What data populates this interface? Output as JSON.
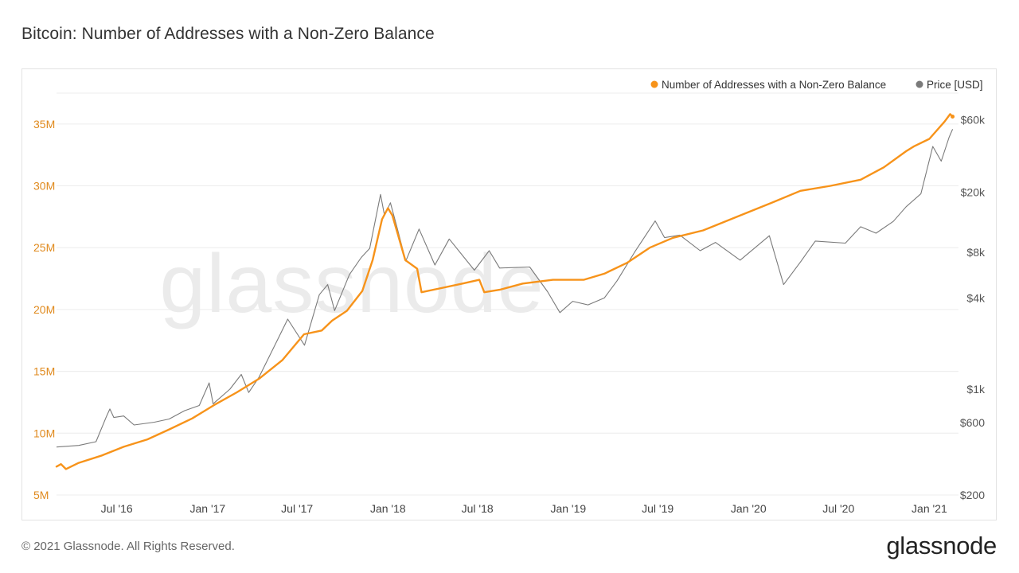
{
  "header": {
    "title": "Bitcoin: Number of Addresses with a Non-Zero Balance"
  },
  "footer": {
    "copyright": "© 2021 Glassnode. All Rights Reserved.",
    "brand": "glassnode"
  },
  "watermark": "glassnode",
  "colors": {
    "addresses": "#f7931a",
    "price": "#7a7a7a",
    "grid": "#ececec",
    "left_axis_text": "#e08a1e",
    "right_axis_text": "#555555"
  },
  "chart_data": {
    "type": "line",
    "title": "Bitcoin: Number of Addresses with a Non-Zero Balance",
    "legend": [
      "Number of Addresses with a Non-Zero Balance",
      "Price [USD]"
    ],
    "legend_position": "top-right",
    "grid": true,
    "x_range": [
      "2016-03-01",
      "2021-03-01"
    ],
    "x_ticks": [
      {
        "label": "Jul '16",
        "date": "2016-07-01"
      },
      {
        "label": "Jan '17",
        "date": "2017-01-01"
      },
      {
        "label": "Jul '17",
        "date": "2017-07-01"
      },
      {
        "label": "Jan '18",
        "date": "2018-01-01"
      },
      {
        "label": "Jul '18",
        "date": "2018-07-01"
      },
      {
        "label": "Jan '19",
        "date": "2019-01-01"
      },
      {
        "label": "Jul '19",
        "date": "2019-07-01"
      },
      {
        "label": "Jan '20",
        "date": "2020-01-01"
      },
      {
        "label": "Jul '20",
        "date": "2020-07-01"
      },
      {
        "label": "Jan '21",
        "date": "2021-01-01"
      }
    ],
    "y_left": {
      "range": [
        5000000,
        37500000
      ],
      "ticks": [
        {
          "label": "5M",
          "value": 5000000
        },
        {
          "label": "10M",
          "value": 10000000
        },
        {
          "label": "15M",
          "value": 15000000
        },
        {
          "label": "20M",
          "value": 20000000
        },
        {
          "label": "25M",
          "value": 25000000
        },
        {
          "label": "30M",
          "value": 30000000
        },
        {
          "label": "35M",
          "value": 35000000
        }
      ]
    },
    "y_right": {
      "scale": "log",
      "range": [
        200,
        90000
      ],
      "ticks": [
        {
          "label": "$200",
          "value": 200
        },
        {
          "label": "$600",
          "value": 600
        },
        {
          "label": "$1k",
          "value": 1000
        },
        {
          "label": "$4k",
          "value": 4000
        },
        {
          "label": "$8k",
          "value": 8000
        },
        {
          "label": "$20k",
          "value": 20000
        },
        {
          "label": "$60k",
          "value": 60000
        }
      ]
    },
    "series": [
      {
        "name": "Number of Addresses with a Non-Zero Balance",
        "axis": "left",
        "points": [
          [
            "2016-03-01",
            7300000.0
          ],
          [
            "2016-03-10",
            7500000.0
          ],
          [
            "2016-03-20",
            7100000.0
          ],
          [
            "2016-04-15",
            7600000.0
          ],
          [
            "2016-06-01",
            8200000.0
          ],
          [
            "2016-07-15",
            8900000.0
          ],
          [
            "2016-09-01",
            9500000.0
          ],
          [
            "2016-10-15",
            10300000.0
          ],
          [
            "2016-12-01",
            11200000.0
          ],
          [
            "2017-01-15",
            12300000.0
          ],
          [
            "2017-03-01",
            13300000.0
          ],
          [
            "2017-04-15",
            14400000.0
          ],
          [
            "2017-06-01",
            15900000.0
          ],
          [
            "2017-06-20",
            16800000.0
          ],
          [
            "2017-07-15",
            18000000.0
          ],
          [
            "2017-08-20",
            18300000.0
          ],
          [
            "2017-09-10",
            19100000.0
          ],
          [
            "2017-10-10",
            19900000.0
          ],
          [
            "2017-11-10",
            21500000.0
          ],
          [
            "2017-12-01",
            24000000.0
          ],
          [
            "2017-12-20",
            27300000.0
          ],
          [
            "2018-01-01",
            28200000.0
          ],
          [
            "2018-01-10",
            27600000.0
          ],
          [
            "2018-02-05",
            24000000.0
          ],
          [
            "2018-03-01",
            23300000.0
          ],
          [
            "2018-03-10",
            21400000.0
          ],
          [
            "2018-04-15",
            21700000.0
          ],
          [
            "2018-06-01",
            22100000.0
          ],
          [
            "2018-07-05",
            22400000.0
          ],
          [
            "2018-07-15",
            21400000.0
          ],
          [
            "2018-08-15",
            21600000.0
          ],
          [
            "2018-10-01",
            22100000.0
          ],
          [
            "2018-12-01",
            22400000.0
          ],
          [
            "2019-02-01",
            22400000.0
          ],
          [
            "2019-03-15",
            22900000.0
          ],
          [
            "2019-05-01",
            23800000.0
          ],
          [
            "2019-06-15",
            25000000.0
          ],
          [
            "2019-08-01",
            25800000.0
          ],
          [
            "2019-10-01",
            26400000.0
          ],
          [
            "2019-12-15",
            27600000.0
          ],
          [
            "2020-02-15",
            28600000.0
          ],
          [
            "2020-04-15",
            29600000.0
          ],
          [
            "2020-06-15",
            30000000.0
          ],
          [
            "2020-08-15",
            30500000.0
          ],
          [
            "2020-10-01",
            31500000.0
          ],
          [
            "2020-11-15",
            32800000.0
          ],
          [
            "2020-12-01",
            33200000.0
          ],
          [
            "2021-01-01",
            33800000.0
          ],
          [
            "2021-02-01",
            35200000.0
          ],
          [
            "2021-02-12",
            35800000.0
          ],
          [
            "2021-02-17",
            35600000.0
          ]
        ]
      },
      {
        "name": "Price [USD]",
        "axis": "right",
        "points": [
          [
            "2016-03-01",
            415
          ],
          [
            "2016-04-15",
            425
          ],
          [
            "2016-05-20",
            450
          ],
          [
            "2016-06-10",
            660
          ],
          [
            "2016-06-17",
            740
          ],
          [
            "2016-06-25",
            650
          ],
          [
            "2016-07-15",
            665
          ],
          [
            "2016-08-05",
            580
          ],
          [
            "2016-09-15",
            605
          ],
          [
            "2016-10-15",
            635
          ],
          [
            "2016-11-15",
            720
          ],
          [
            "2016-12-15",
            780
          ],
          [
            "2017-01-04",
            1100
          ],
          [
            "2017-01-12",
            800
          ],
          [
            "2017-02-15",
            1000
          ],
          [
            "2017-03-10",
            1250
          ],
          [
            "2017-03-25",
            950
          ],
          [
            "2017-04-15",
            1200
          ],
          [
            "2017-05-25",
            2200
          ],
          [
            "2017-06-12",
            2900
          ],
          [
            "2017-07-16",
            1950
          ],
          [
            "2017-08-15",
            4200
          ],
          [
            "2017-09-01",
            4900
          ],
          [
            "2017-09-15",
            3300
          ],
          [
            "2017-10-15",
            5700
          ],
          [
            "2017-11-08",
            7400
          ],
          [
            "2017-11-25",
            8500
          ],
          [
            "2017-12-17",
            19300
          ],
          [
            "2017-12-25",
            14000
          ],
          [
            "2018-01-06",
            17000
          ],
          [
            "2018-01-20",
            11500
          ],
          [
            "2018-02-06",
            7000
          ],
          [
            "2018-03-05",
            11400
          ],
          [
            "2018-04-06",
            6600
          ],
          [
            "2018-05-05",
            9800
          ],
          [
            "2018-06-25",
            6100
          ],
          [
            "2018-07-25",
            8200
          ],
          [
            "2018-08-15",
            6300
          ],
          [
            "2018-10-15",
            6400
          ],
          [
            "2018-11-20",
            4400
          ],
          [
            "2018-12-15",
            3200
          ],
          [
            "2019-01-10",
            3800
          ],
          [
            "2019-02-10",
            3600
          ],
          [
            "2019-03-15",
            4000
          ],
          [
            "2019-04-10",
            5200
          ],
          [
            "2019-05-15",
            8000
          ],
          [
            "2019-06-26",
            12900
          ],
          [
            "2019-07-15",
            10000
          ],
          [
            "2019-08-15",
            10400
          ],
          [
            "2019-09-25",
            8200
          ],
          [
            "2019-10-26",
            9300
          ],
          [
            "2019-12-15",
            7100
          ],
          [
            "2020-02-12",
            10300
          ],
          [
            "2020-03-12",
            4900
          ],
          [
            "2020-04-15",
            6900
          ],
          [
            "2020-05-15",
            9500
          ],
          [
            "2020-07-15",
            9200
          ],
          [
            "2020-08-15",
            11800
          ],
          [
            "2020-09-15",
            10700
          ],
          [
            "2020-10-20",
            12800
          ],
          [
            "2020-11-15",
            16000
          ],
          [
            "2020-12-15",
            19500
          ],
          [
            "2021-01-08",
            40000
          ],
          [
            "2021-01-25",
            32000
          ],
          [
            "2021-02-10",
            46000
          ],
          [
            "2021-02-17",
            52000
          ]
        ]
      }
    ]
  }
}
